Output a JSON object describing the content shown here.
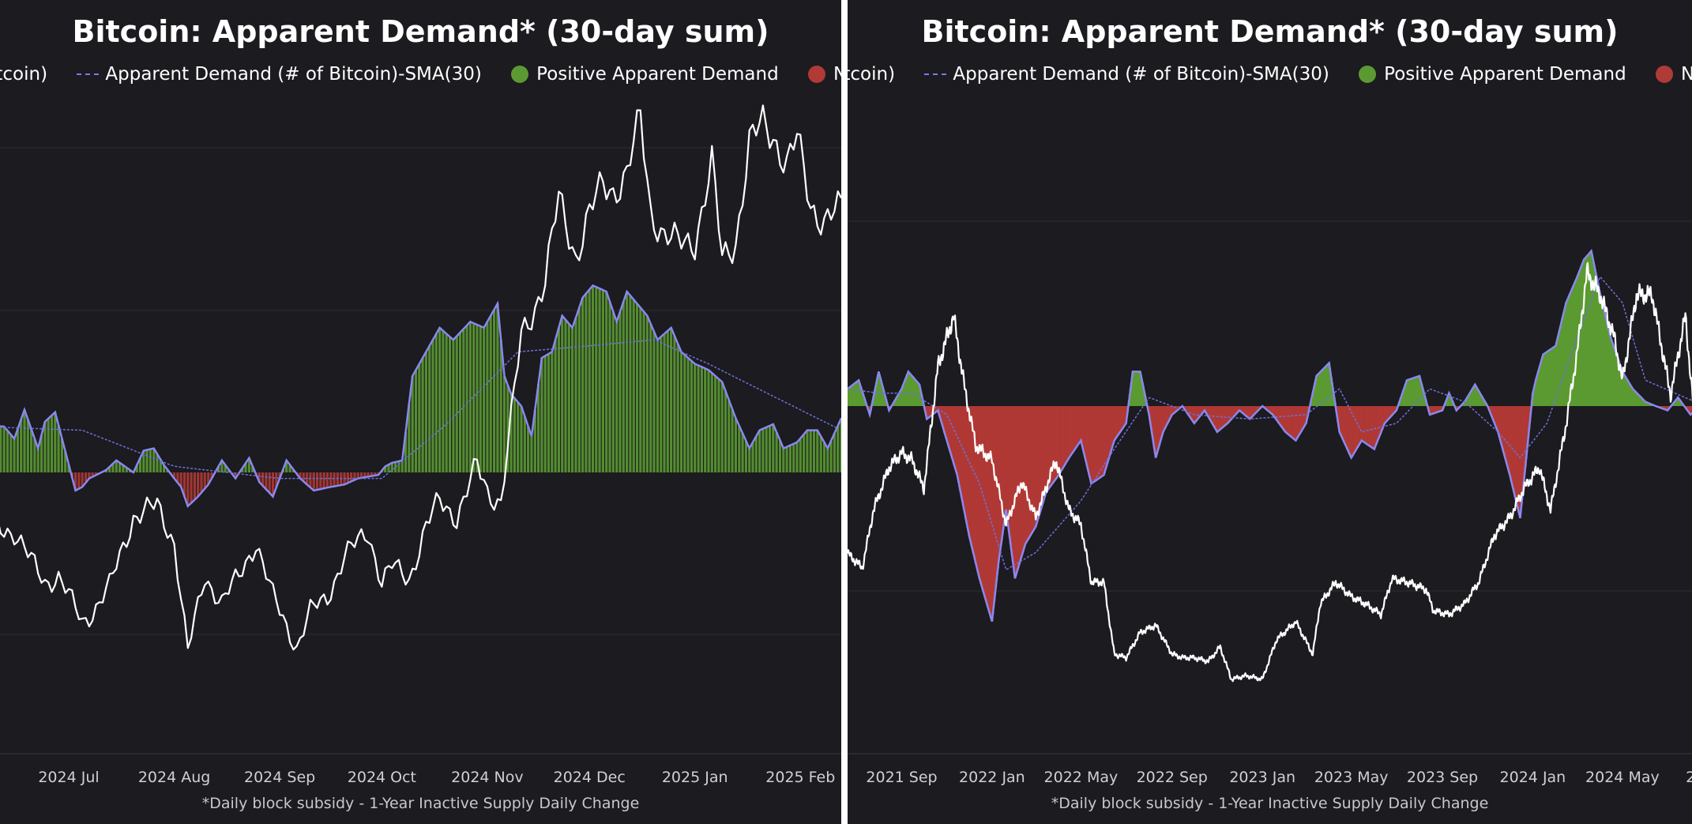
{
  "chart_data": [
    {
      "type": "bar",
      "title": "Bitcoin: Apparent Demand* (30-day sum)",
      "footnote": "*Daily block subsidy - 1-Year Inactive Supply Daily Change",
      "legend_text": "itcoin)",
      "legend": [
        {
          "name": "Apparent Demand (# of Bitcoin)-SMA(30)",
          "kind": "line",
          "color": "#7b7be8"
        },
        {
          "name": "Positive Apparent Demand",
          "kind": "dot",
          "color": "#5b9a32"
        },
        {
          "name": "Negative A",
          "kind": "dot",
          "color": "#b03a35"
        }
      ],
      "legend_position": "top",
      "grid": true,
      "colors": {
        "positive": "#5b9a32",
        "negative": "#b03a35",
        "outline": "#8a88f0",
        "sma": "#6f6fdc",
        "price": "#ffffff"
      },
      "x_tick_labels": [
        "2024 Jul",
        "2024 Aug",
        "2024 Sep",
        "2024 Oct",
        "2024 Nov",
        "2024 Dec",
        "2025 Jan",
        "2025 Feb"
      ],
      "x_ticks": [
        "2024-07-01",
        "2024-08-01",
        "2024-09-01",
        "2024-10-01",
        "2024-11-01",
        "2024-12-01",
        "2025-01-01",
        "2025-02-01"
      ],
      "x_range": [
        "2024-06-05",
        "2025-02-13"
      ],
      "demand_range": [
        -175,
        190
      ],
      "price_range": [
        50000,
        105000
      ],
      "demand": {
        "x": [
          "2024-06-05",
          "2024-06-12",
          "2024-06-15",
          "2024-06-18",
          "2024-06-22",
          "2024-06-24",
          "2024-06-27",
          "2024-07-03",
          "2024-07-05",
          "2024-07-07",
          "2024-07-12",
          "2024-07-15",
          "2024-07-20",
          "2024-07-23",
          "2024-07-26",
          "2024-07-29",
          "2024-08-01",
          "2024-08-03",
          "2024-08-05",
          "2024-08-08",
          "2024-08-11",
          "2024-08-15",
          "2024-08-19",
          "2024-08-23",
          "2024-08-26",
          "2024-08-30",
          "2024-09-03",
          "2024-09-07",
          "2024-09-11",
          "2024-09-16",
          "2024-09-20",
          "2024-09-24",
          "2024-09-30",
          "2024-10-02",
          "2024-10-04",
          "2024-10-07",
          "2024-10-10",
          "2024-10-14",
          "2024-10-18",
          "2024-10-22",
          "2024-10-27",
          "2024-10-31",
          "2024-11-04",
          "2024-11-06",
          "2024-11-08",
          "2024-11-11",
          "2024-11-14",
          "2024-11-17",
          "2024-11-20",
          "2024-11-23",
          "2024-11-26",
          "2024-11-29",
          "2024-12-02",
          "2024-12-06",
          "2024-12-09",
          "2024-12-12",
          "2024-12-15",
          "2024-12-18",
          "2024-12-21",
          "2024-12-25",
          "2024-12-28",
          "2025-01-01",
          "2025-01-05",
          "2025-01-09",
          "2025-01-13",
          "2025-01-17",
          "2025-01-20",
          "2025-01-24",
          "2025-01-27",
          "2025-01-31",
          "2025-02-03",
          "2025-02-06",
          "2025-02-09",
          "2025-02-13"
        ],
        "values": [
          40,
          38,
          28,
          52,
          20,
          42,
          50,
          -15,
          -12,
          -5,
          2,
          10,
          0,
          18,
          20,
          6,
          -5,
          -12,
          -28,
          -20,
          -10,
          10,
          -5,
          12,
          -8,
          -20,
          10,
          -5,
          -15,
          -12,
          -10,
          -5,
          -2,
          5,
          8,
          10,
          80,
          100,
          120,
          110,
          125,
          120,
          140,
          80,
          65,
          55,
          30,
          95,
          100,
          130,
          120,
          145,
          155,
          150,
          125,
          150,
          140,
          130,
          110,
          120,
          100,
          90,
          85,
          75,
          45,
          20,
          35,
          40,
          20,
          25,
          35,
          35,
          20,
          45
        ]
      },
      "sma": {
        "x": [
          "2024-06-05",
          "2024-07-05",
          "2024-08-01",
          "2024-09-01",
          "2024-10-01",
          "2024-10-20",
          "2024-11-10",
          "2024-12-01",
          "2024-12-20",
          "2025-01-05",
          "2025-02-13"
        ],
        "values": [
          38,
          35,
          5,
          -5,
          -5,
          40,
          100,
          105,
          110,
          90,
          35
        ]
      },
      "price": {
        "x": [
          "2024-06-05",
          "2024-06-10",
          "2024-06-15",
          "2024-06-20",
          "2024-06-24",
          "2024-06-28",
          "2024-07-05",
          "2024-07-08",
          "2024-07-13",
          "2024-07-20",
          "2024-07-27",
          "2024-08-01",
          "2024-08-05",
          "2024-08-10",
          "2024-08-15",
          "2024-08-20",
          "2024-08-25",
          "2024-08-30",
          "2024-09-06",
          "2024-09-10",
          "2024-09-15",
          "2024-09-20",
          "2024-09-27",
          "2024-10-01",
          "2024-10-04",
          "2024-10-09",
          "2024-10-14",
          "2024-10-18",
          "2024-10-23",
          "2024-10-29",
          "2024-11-01",
          "2024-11-05",
          "2024-11-08",
          "2024-11-11",
          "2024-11-15",
          "2024-11-18",
          "2024-11-22",
          "2024-11-27",
          "2024-12-01",
          "2024-12-05",
          "2024-12-08",
          "2024-12-12",
          "2024-12-16",
          "2024-12-19",
          "2024-12-23",
          "2024-12-27",
          "2025-01-01",
          "2025-01-06",
          "2025-01-09",
          "2025-01-13",
          "2025-01-17",
          "2025-01-21",
          "2025-01-24",
          "2025-01-28",
          "2025-01-31",
          "2025-02-04",
          "2025-02-08",
          "2025-02-13"
        ],
        "values": [
          68000,
          66000,
          65500,
          62500,
          60500,
          61000,
          56500,
          57500,
          60000,
          67000,
          68000,
          64500,
          53500,
          61000,
          58500,
          61000,
          64500,
          59000,
          54000,
          57500,
          59000,
          63000,
          65500,
          60500,
          62000,
          60800,
          66000,
          68500,
          67000,
          72000,
          69500,
          68500,
          76500,
          85000,
          88000,
          90500,
          98500,
          93000,
          97000,
          100000,
          99500,
          101000,
          106500,
          97500,
          95000,
          94000,
          94500,
          102000,
          92500,
          94500,
          104000,
          106000,
          105000,
          102000,
          104500,
          98000,
          96500,
          97500
        ]
      }
    },
    {
      "type": "bar",
      "title": "Bitcoin: Apparent Demand* (30-day sum)",
      "footnote": "*Daily block subsidy - 1-Year Inactive Supply Daily Change",
      "legend_text": "itcoin)",
      "legend": [
        {
          "name": "Apparent Demand (# of Bitcoin)-SMA(30)",
          "kind": "line",
          "color": "#7b7be8"
        },
        {
          "name": "Positive Apparent Demand",
          "kind": "dot",
          "color": "#5b9a32"
        },
        {
          "name": "Negative A",
          "kind": "dot",
          "color": "#b03a35"
        }
      ],
      "legend_position": "top",
      "grid": true,
      "colors": {
        "positive": "#5b9a32",
        "negative": "#b03a35",
        "outline": "#8a88f0",
        "sma": "#6f6fdc",
        "price": "#ffffff"
      },
      "x_tick_labels": [
        "2021 Sep",
        "2022 Jan",
        "2022 May",
        "2022 Sep",
        "2023 Jan",
        "2023 May",
        "2023 Sep",
        "2024 Jan",
        "2024 May",
        "2"
      ],
      "x_ticks": [
        "2021-09-01",
        "2022-01-01",
        "2022-05-01",
        "2022-09-01",
        "2023-01-01",
        "2023-05-01",
        "2023-09-01",
        "2024-01-01",
        "2024-05-01",
        "2024-08-01"
      ],
      "x_range": [
        "2021-06-20",
        "2024-08-20"
      ],
      "demand_range": [
        -260,
        265
      ],
      "price_range": [
        0,
        78000
      ],
      "demand": {
        "x": [
          "2021-06-20",
          "2021-07-05",
          "2021-07-20",
          "2021-08-01",
          "2021-08-15",
          "2021-09-01",
          "2021-09-10",
          "2021-09-25",
          "2021-10-05",
          "2021-10-20",
          "2021-11-01",
          "2021-11-15",
          "2021-12-01",
          "2021-12-15",
          "2022-01-01",
          "2022-01-10",
          "2022-01-20",
          "2022-02-01",
          "2022-02-15",
          "2022-03-01",
          "2022-03-15",
          "2022-04-01",
          "2022-04-15",
          "2022-05-01",
          "2022-05-15",
          "2022-06-01",
          "2022-06-15",
          "2022-07-01",
          "2022-07-10",
          "2022-07-20",
          "2022-08-01",
          "2022-08-10",
          "2022-08-20",
          "2022-09-01",
          "2022-09-15",
          "2022-10-01",
          "2022-10-15",
          "2022-11-01",
          "2022-11-15",
          "2022-12-01",
          "2022-12-15",
          "2023-01-01",
          "2023-01-15",
          "2023-02-01",
          "2023-02-15",
          "2023-03-01",
          "2023-03-15",
          "2023-04-01",
          "2023-04-15",
          "2023-05-01",
          "2023-05-15",
          "2023-06-01",
          "2023-06-15",
          "2023-07-01",
          "2023-07-15",
          "2023-08-01",
          "2023-08-15",
          "2023-09-01",
          "2023-09-10",
          "2023-09-20",
          "2023-10-01",
          "2023-10-15",
          "2023-11-01",
          "2023-11-15",
          "2023-12-01",
          "2023-12-15",
          "2024-01-01",
          "2024-01-05",
          "2024-01-15",
          "2024-02-01",
          "2024-02-15",
          "2024-03-01",
          "2024-03-10",
          "2024-03-20",
          "2024-04-01",
          "2024-04-15",
          "2024-05-01",
          "2024-05-15",
          "2024-06-01",
          "2024-06-15",
          "2024-07-01",
          "2024-07-15",
          "2024-08-01",
          "2024-08-20"
        ],
        "values": [
          20,
          30,
          -10,
          40,
          -5,
          20,
          40,
          25,
          -15,
          -5,
          -40,
          -80,
          -150,
          -200,
          -250,
          -180,
          -120,
          -200,
          -160,
          -140,
          -100,
          -80,
          -60,
          -40,
          -90,
          -80,
          -40,
          -20,
          40,
          40,
          -10,
          -60,
          -30,
          -10,
          0,
          -20,
          -5,
          -30,
          -20,
          -5,
          -15,
          0,
          -10,
          -30,
          -40,
          -20,
          35,
          50,
          -30,
          -60,
          -40,
          -50,
          -20,
          -5,
          30,
          35,
          -10,
          -5,
          15,
          -5,
          5,
          25,
          0,
          -30,
          -80,
          -130,
          15,
          30,
          60,
          70,
          120,
          150,
          170,
          180,
          130,
          80,
          40,
          20,
          5,
          0,
          -5,
          10,
          -10,
          5
        ]
      },
      "sma": {
        "x": [
          "2021-06-20",
          "2021-08-01",
          "2021-09-15",
          "2021-11-01",
          "2021-12-15",
          "2022-01-20",
          "2022-03-01",
          "2022-05-01",
          "2022-06-15",
          "2022-08-01",
          "2022-10-01",
          "2022-12-15",
          "2023-03-01",
          "2023-04-15",
          "2023-05-15",
          "2023-07-01",
          "2023-08-15",
          "2023-10-01",
          "2023-11-15",
          "2023-12-15",
          "2024-01-20",
          "2024-03-01",
          "2024-04-01",
          "2024-05-01",
          "2024-06-01",
          "2024-08-20"
        ],
        "values": [
          20,
          15,
          15,
          -10,
          -90,
          -190,
          -170,
          -110,
          -50,
          10,
          -10,
          -15,
          -10,
          20,
          -30,
          -20,
          20,
          5,
          -30,
          -60,
          -20,
          80,
          150,
          120,
          30,
          0
        ]
      },
      "price": {
        "x": [
          "2021-06-20",
          "2021-07-10",
          "2021-07-25",
          "2021-08-15",
          "2021-09-01",
          "2021-09-15",
          "2021-10-01",
          "2021-10-20",
          "2021-11-10",
          "2021-11-25",
          "2021-12-10",
          "2022-01-01",
          "2022-01-20",
          "2022-02-10",
          "2022-03-01",
          "2022-03-28",
          "2022-04-15",
          "2022-05-01",
          "2022-05-15",
          "2022-06-01",
          "2022-06-15",
          "2022-07-01",
          "2022-07-20",
          "2022-08-10",
          "2022-09-01",
          "2022-09-15",
          "2022-10-01",
          "2022-10-20",
          "2022-11-05",
          "2022-11-20",
          "2022-12-10",
          "2023-01-01",
          "2023-01-20",
          "2023-02-15",
          "2023-03-10",
          "2023-03-20",
          "2023-04-10",
          "2023-05-01",
          "2023-05-20",
          "2023-06-10",
          "2023-06-25",
          "2023-07-15",
          "2023-08-10",
          "2023-08-20",
          "2023-09-10",
          "2023-10-01",
          "2023-10-20",
          "2023-11-10",
          "2023-12-01",
          "2023-12-20",
          "2024-01-10",
          "2024-01-25",
          "2024-02-15",
          "2024-03-01",
          "2024-03-14",
          "2024-04-01",
          "2024-04-20",
          "2024-05-01",
          "2024-05-20",
          "2024-06-10",
          "2024-07-05",
          "2024-07-25",
          "2024-08-05",
          "2024-08-20"
        ],
        "values": [
          34000,
          32000,
          40000,
          46000,
          48000,
          47000,
          43000,
          60000,
          67000,
          57000,
          49000,
          47000,
          38000,
          44000,
          39000,
          47000,
          40000,
          38000,
          30000,
          30000,
          20000,
          19500,
          23000,
          24000,
          20000,
          19500,
          19500,
          19000,
          21000,
          16500,
          17000,
          16500,
          22000,
          24500,
          20000,
          27000,
          30000,
          28000,
          27000,
          25500,
          30500,
          30000,
          29000,
          26000,
          25500,
          27000,
          30000,
          36500,
          39000,
          43000,
          46000,
          40000,
          52000,
          62000,
          73000,
          70000,
          64000,
          58000,
          70000,
          70000,
          56000,
          67000,
          54000,
          58000
        ]
      }
    }
  ]
}
